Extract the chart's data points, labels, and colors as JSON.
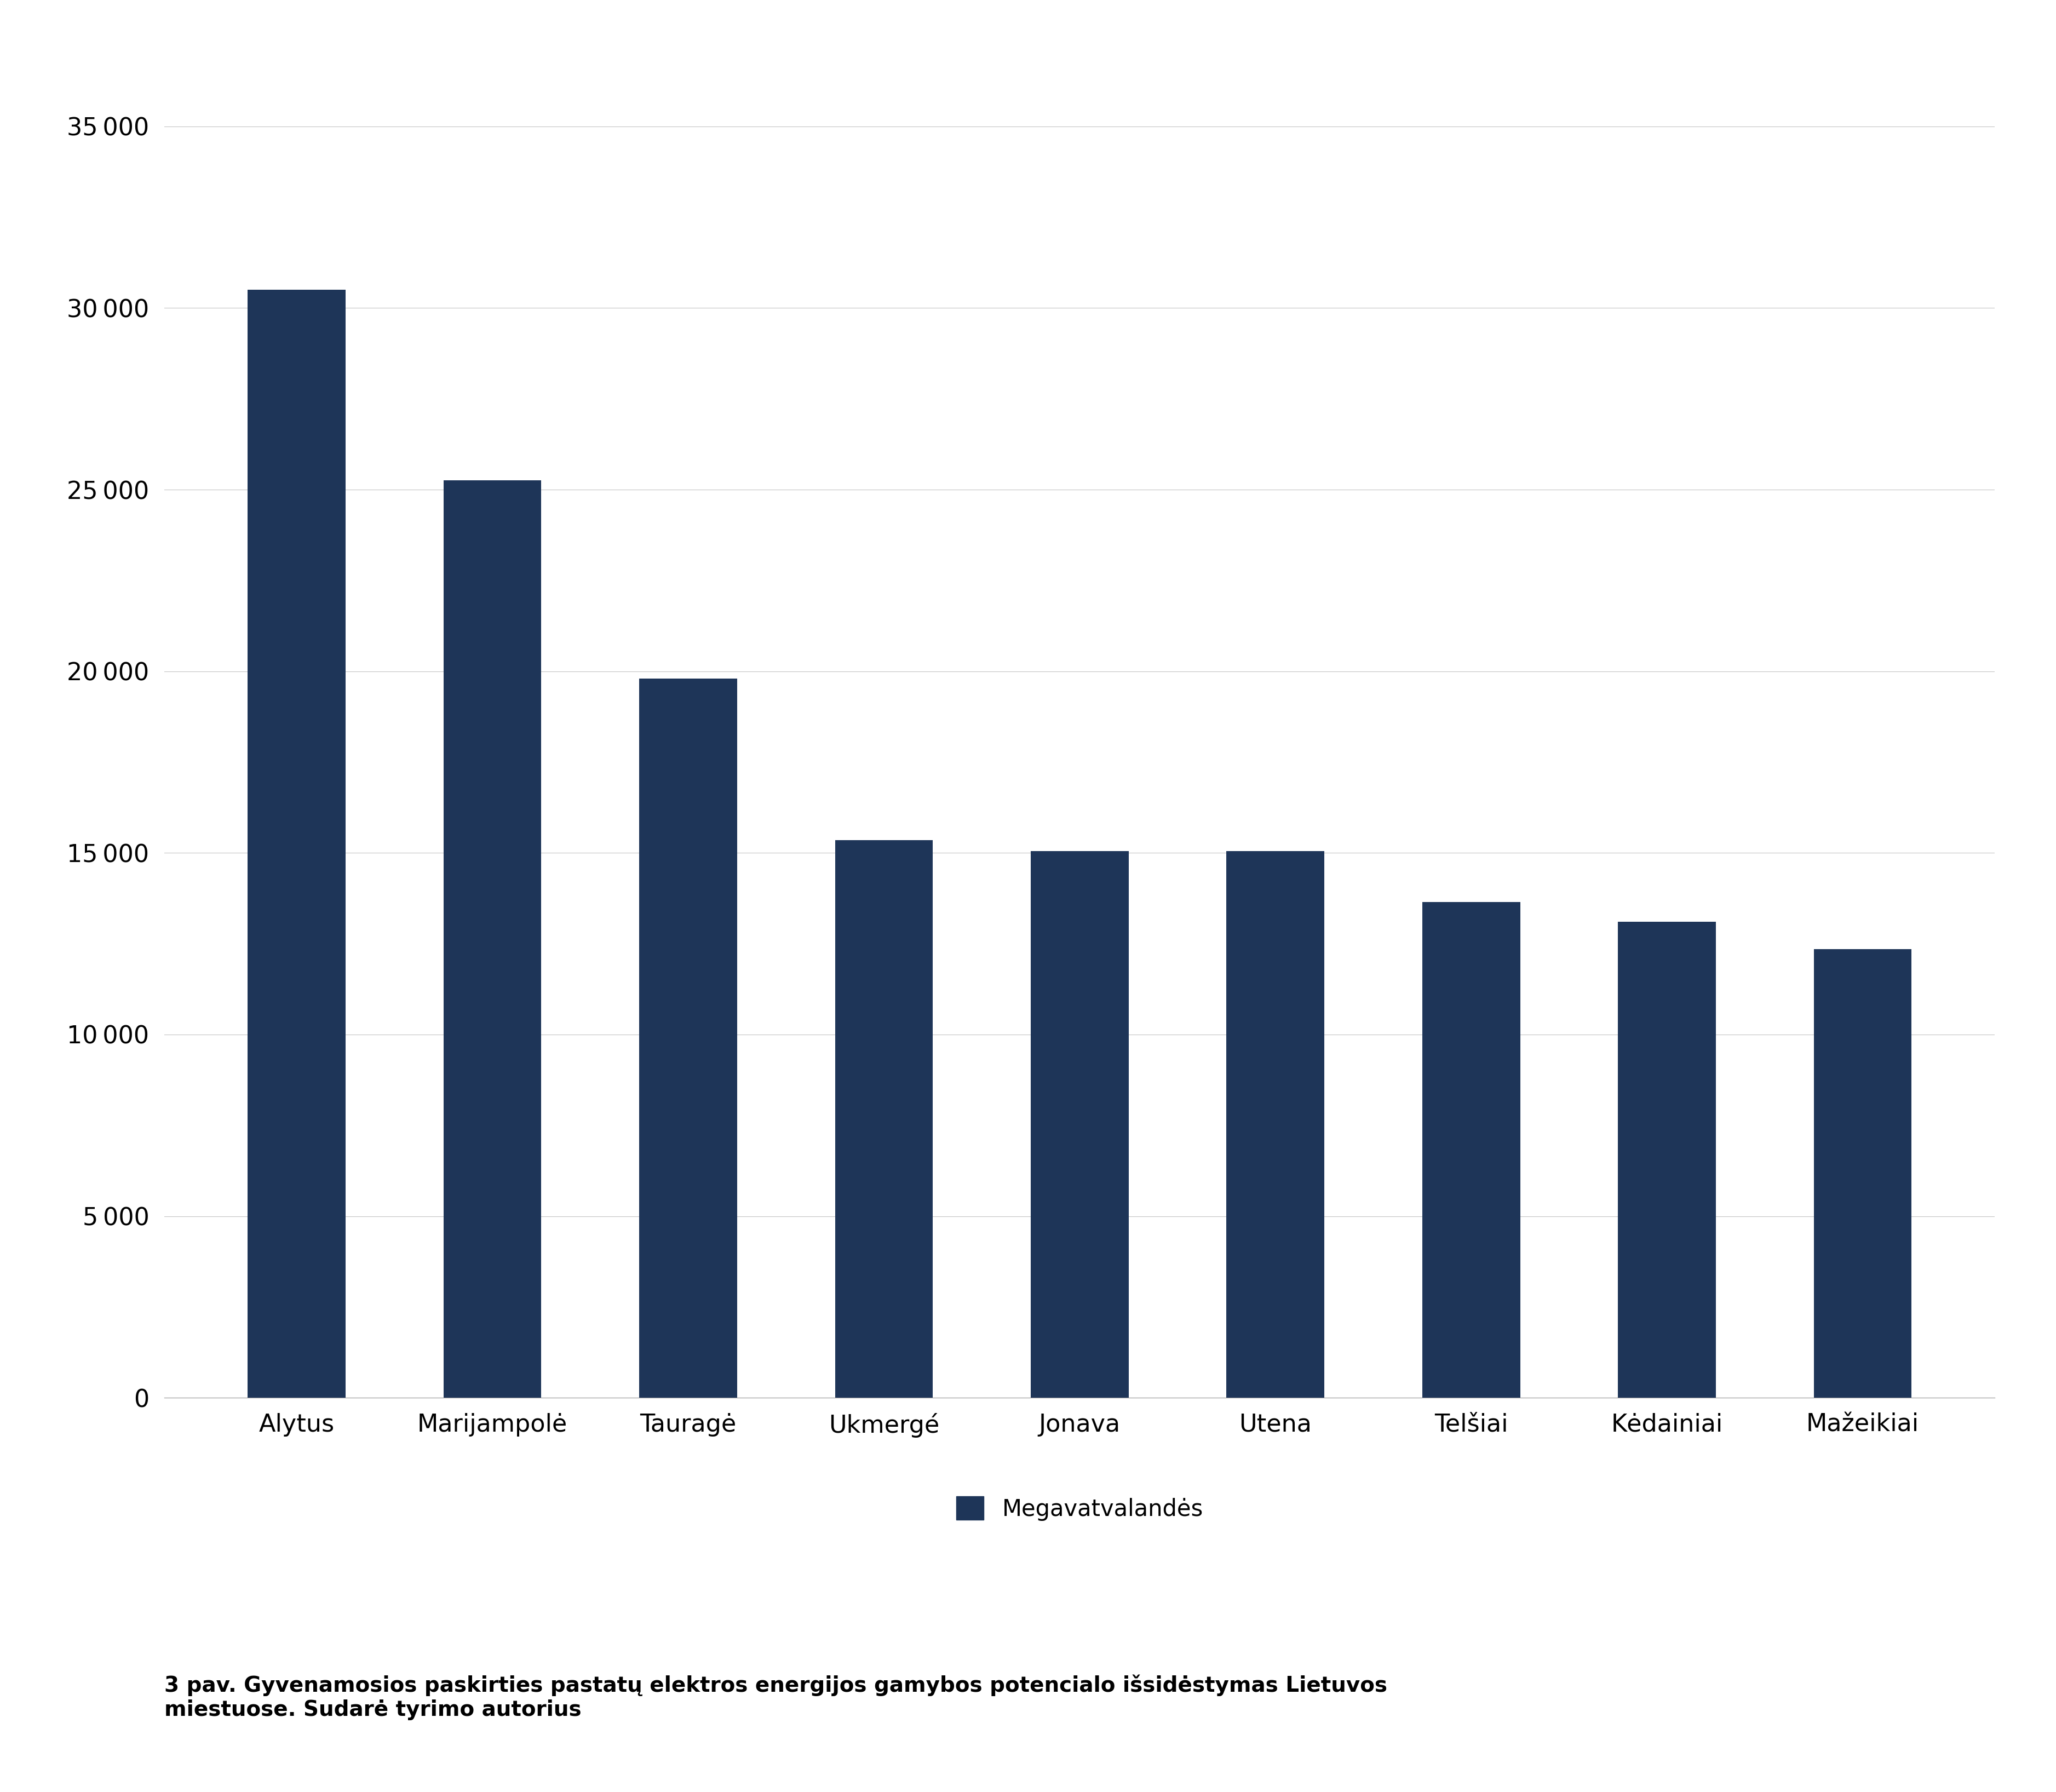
{
  "categories": [
    "Alytus",
    "Marijampolė",
    "Tauragė",
    "Ukmergé",
    "Jonava",
    "Utena",
    "Telšiai",
    "Kėdainiai",
    "Mažeikiai"
  ],
  "values": [
    30500,
    25250,
    19800,
    15350,
    15050,
    15050,
    13650,
    13100,
    12350
  ],
  "bar_color": "#1e3558",
  "yticks": [
    0,
    5000,
    10000,
    15000,
    20000,
    25000,
    30000,
    35000
  ],
  "ylim": [
    0,
    37000
  ],
  "legend_label": "Megavatvalandės",
  "caption_line1": "3 pav. Gyvenamosios paskirties pastatų elektros energijos gamybos potencialo išsidėstymas Lietuvos",
  "caption_line2": "miestuose. Sudarė tyrimo autorius",
  "background_color": "#ffffff",
  "grid_color": "#bbbbbb",
  "tick_label_fontsize": 32,
  "legend_fontsize": 30,
  "caption_fontsize": 28,
  "bar_width": 0.5
}
